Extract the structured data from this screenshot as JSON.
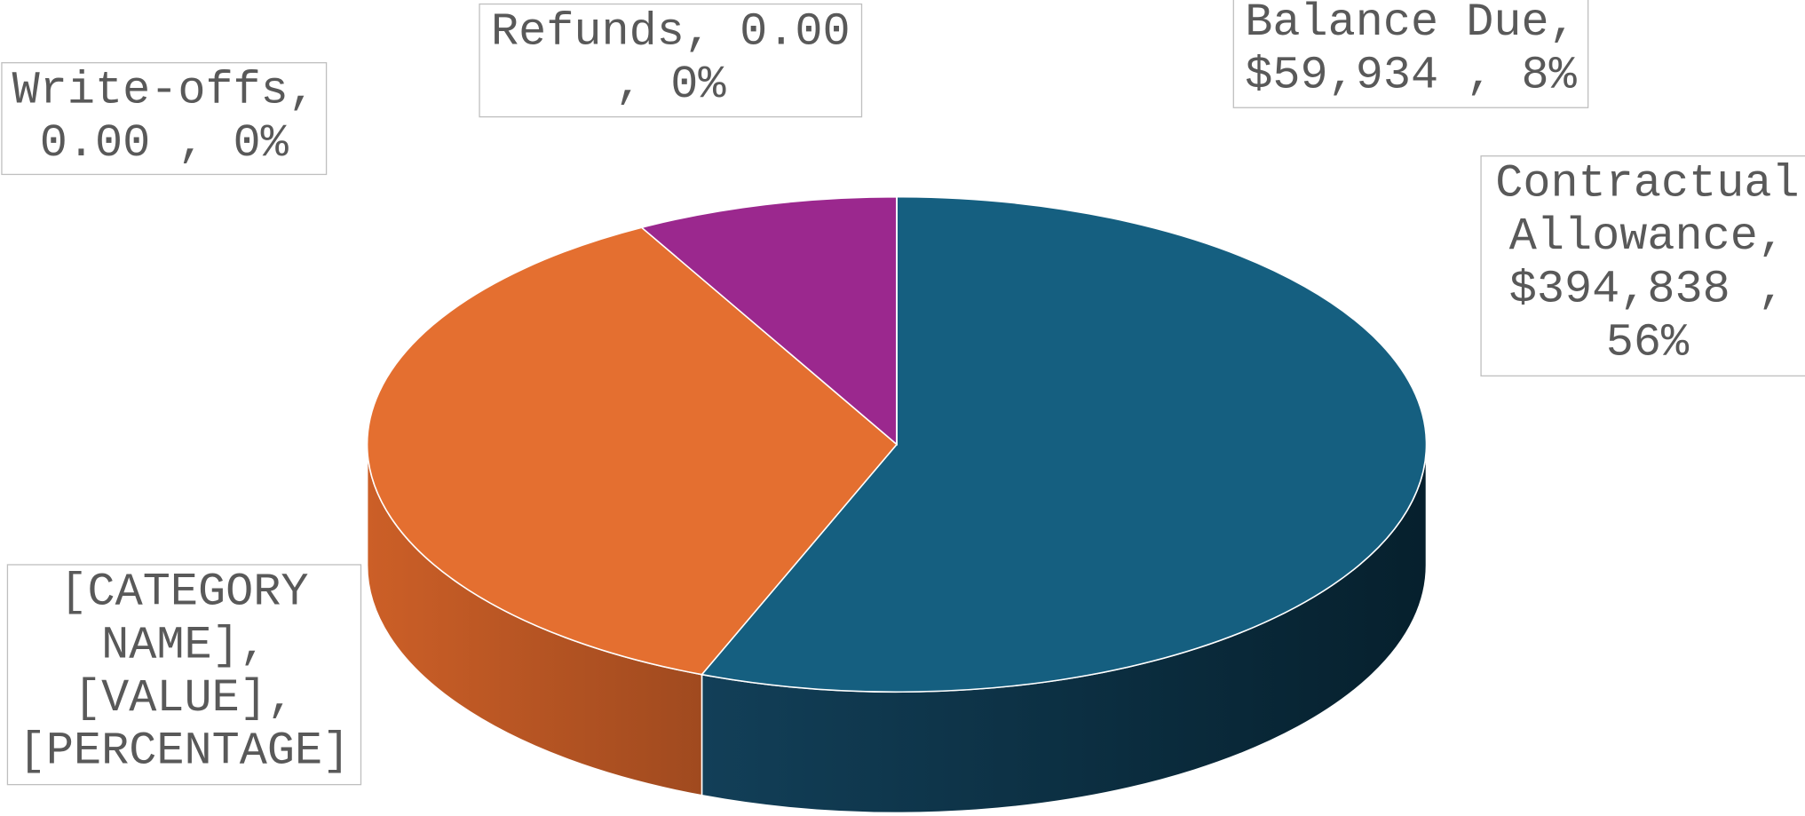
{
  "chart_data": {
    "type": "pie3d",
    "values": [
      56,
      36,
      8,
      0,
      0
    ],
    "value_labels": [
      "Contractual Allowance, $394,838 , 56%",
      "[CATEGORY NAME], [VALUE], [PERCENTAGE]",
      "Balance Due, $59,934 , 8%",
      "Write-offs, 0.00 , 0%",
      "Refunds, 0.00 , 0%"
    ],
    "colors": [
      "#155f80",
      "#e46f30",
      "#9b288e",
      "#a5a5a5",
      "#ffc000"
    ]
  }
}
